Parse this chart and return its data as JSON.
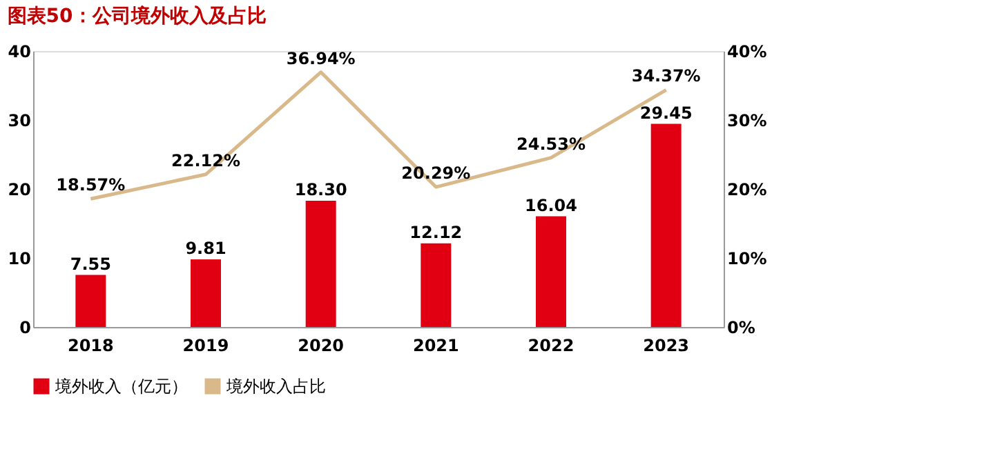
{
  "chart_data": {
    "type": "bar",
    "title": "图表50：公司境外收入及占比",
    "categories": [
      "2018",
      "2019",
      "2020",
      "2021",
      "2022",
      "2023"
    ],
    "series": [
      {
        "name": "境外收入（亿元）",
        "color": "#e00012",
        "values": [
          7.55,
          9.81,
          18.3,
          12.12,
          16.04,
          29.45
        ],
        "value_labels": [
          "7.55",
          "9.81",
          "18.30",
          "12.12",
          "16.04",
          "29.45"
        ]
      },
      {
        "name": "境外收入占比",
        "type": "line",
        "axis": "y2",
        "color": "#d9b98a",
        "values": [
          18.57,
          22.12,
          36.94,
          20.29,
          24.53,
          34.37
        ],
        "value_labels": [
          "18.57%",
          "22.12%",
          "36.94%",
          "20.29%",
          "24.53%",
          "34.37%"
        ]
      }
    ],
    "ylim": [
      0,
      40
    ],
    "yticks": [
      0,
      10,
      20,
      30,
      40
    ],
    "y2lim": [
      0,
      40
    ],
    "y2ticks": [
      {
        "value": 0,
        "label": "0%"
      },
      {
        "value": 10,
        "label": "10%"
      },
      {
        "value": 20,
        "label": "20%"
      },
      {
        "value": 30,
        "label": "30%"
      },
      {
        "value": 40,
        "label": "40%"
      }
    ],
    "grid": false,
    "legend": "bottom",
    "marker": "none",
    "line_style": "solid"
  }
}
